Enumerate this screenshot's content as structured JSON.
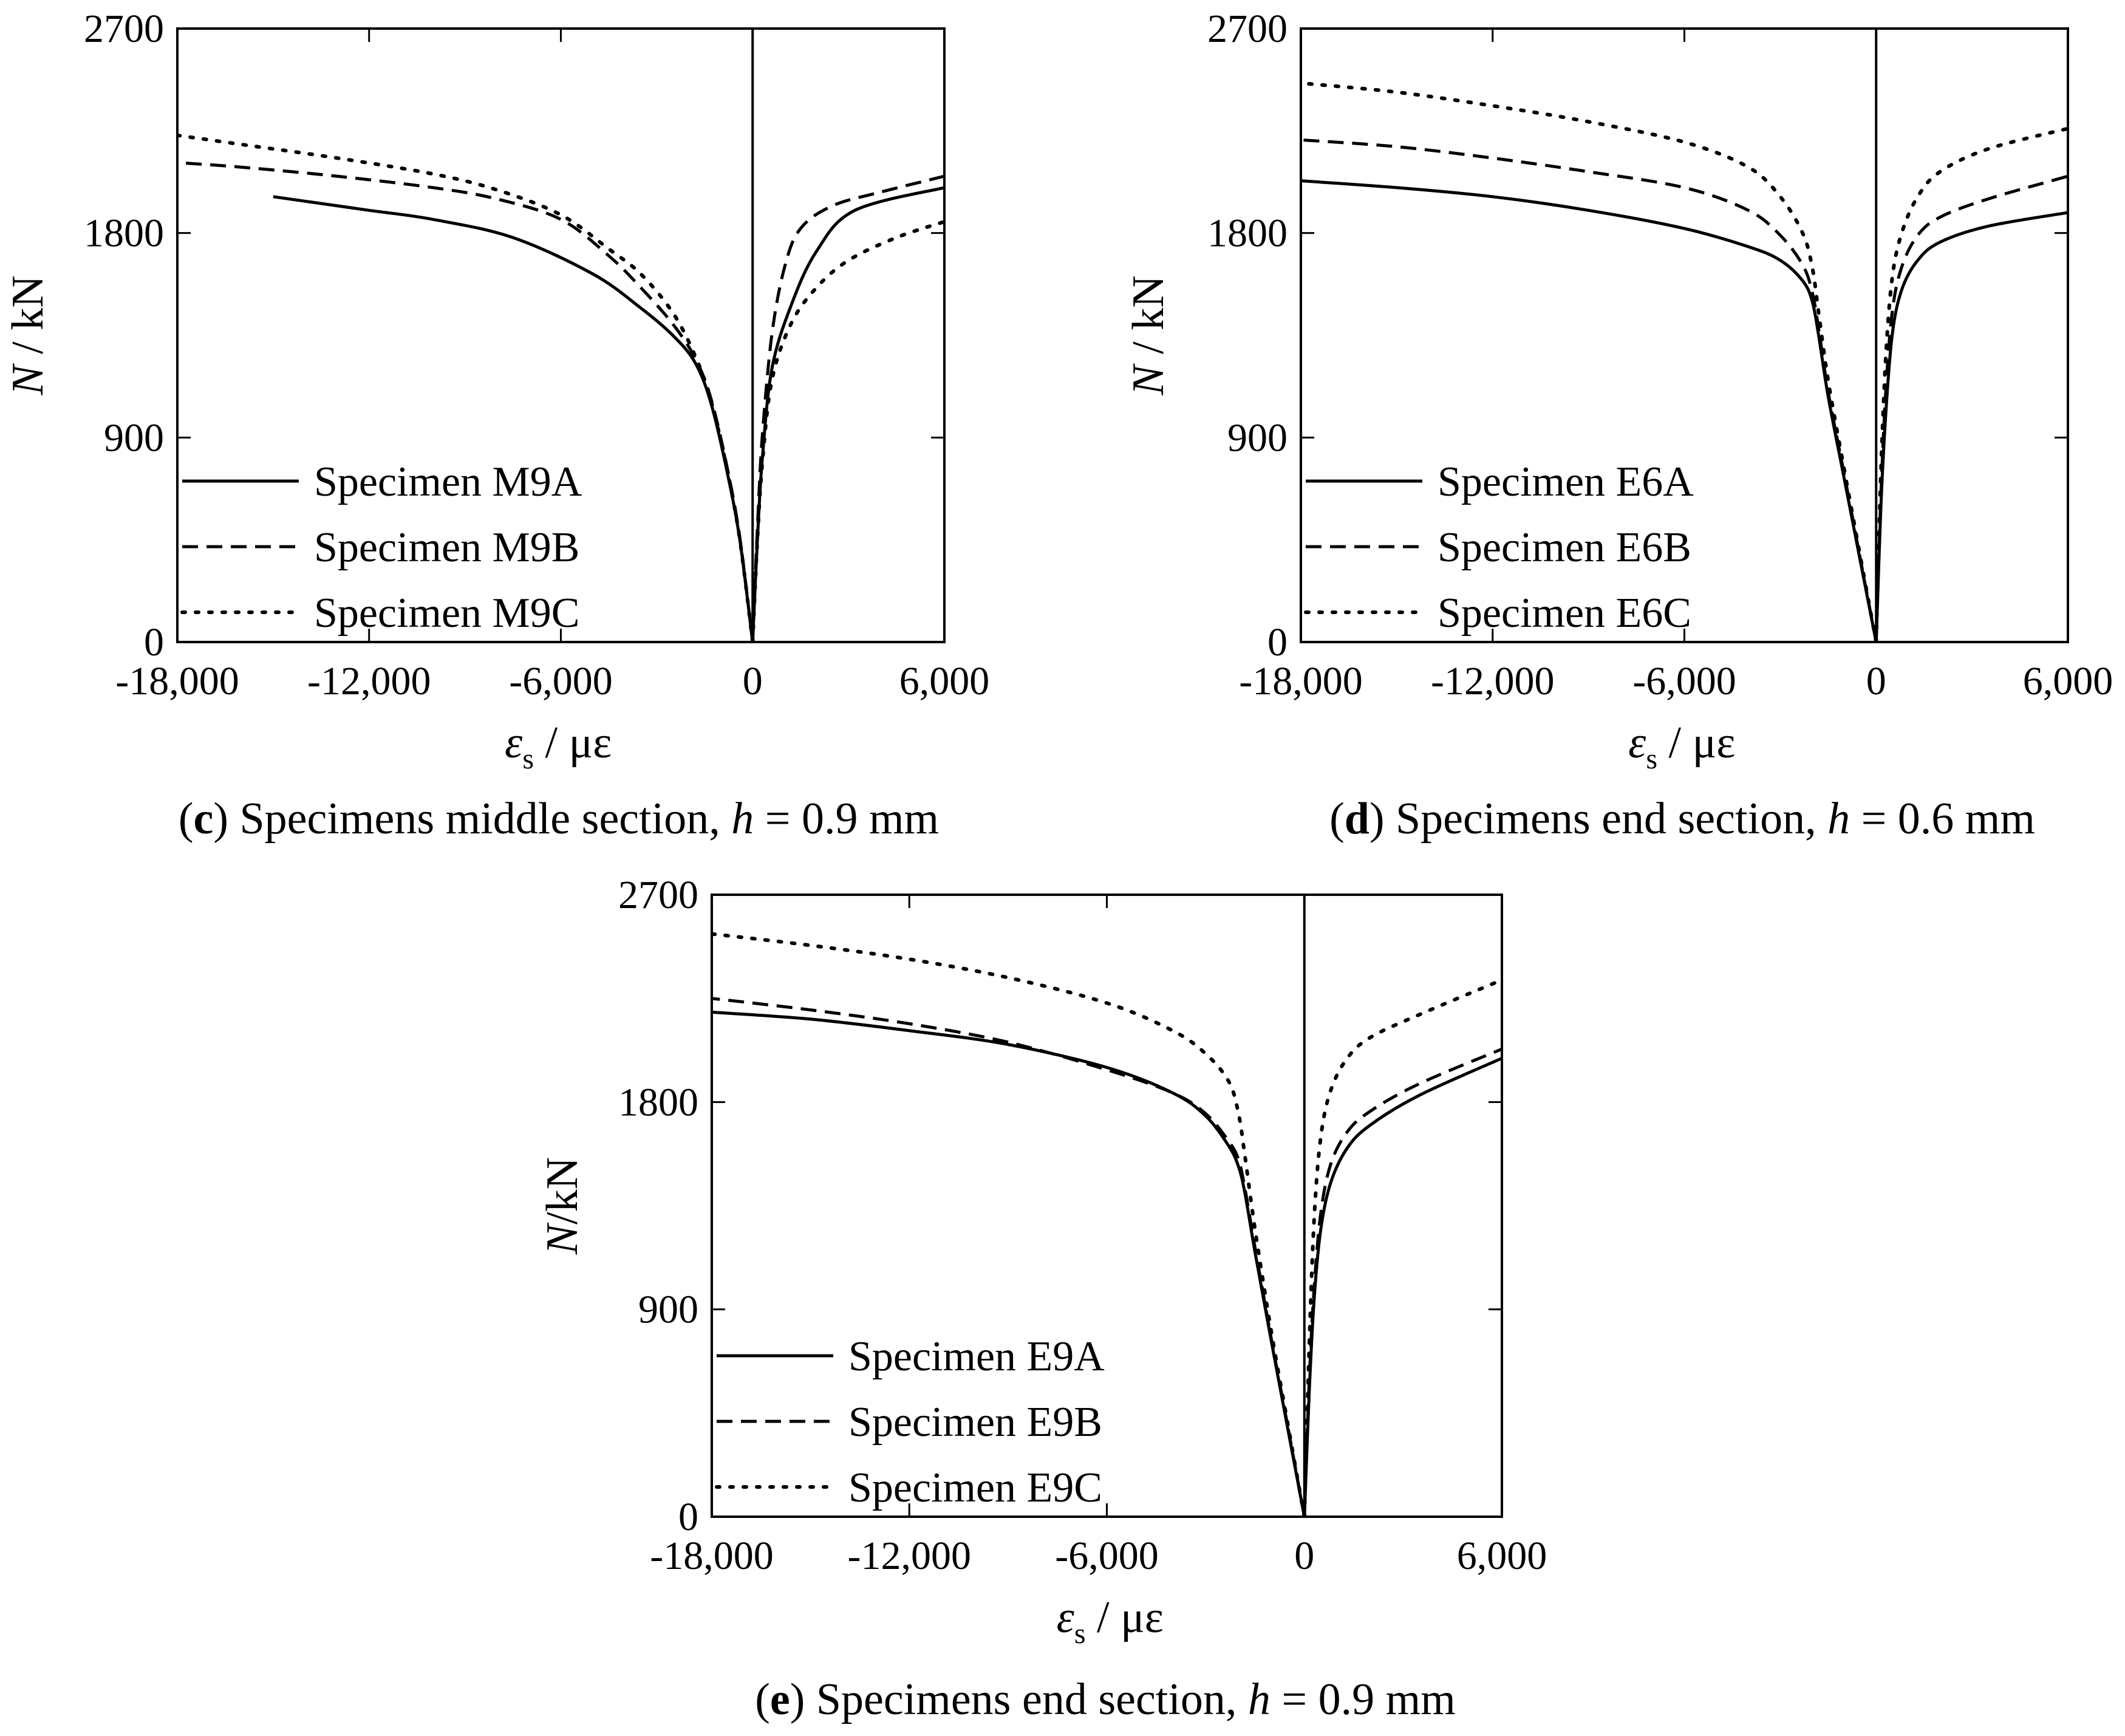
{
  "figure": {
    "panels": [
      {
        "id": "c",
        "caption": {
          "letter": "c",
          "text": "Specimens middle section, ",
          "h_symbol": "h",
          "h_value": " = 0.9 mm"
        },
        "axis_labels": {
          "y": "N / kN",
          "y_symbol": "N",
          "y_rest": " / kN",
          "x_symbol": "ε",
          "x_sub": "s",
          "x_rest": " / με"
        },
        "legend": [
          "Specimen M9A",
          "Specimen M9B",
          "Specimen M9C"
        ]
      },
      {
        "id": "d",
        "caption": {
          "letter": "d",
          "text": "Specimens end section, ",
          "h_symbol": "h",
          "h_value": " = 0.6 mm"
        },
        "axis_labels": {
          "y": "N / kN",
          "y_symbol": "N",
          "y_rest": " / kN",
          "x_symbol": "ε",
          "x_sub": "s",
          "x_rest": " / με"
        },
        "legend": [
          "Specimen E6A",
          "Specimen E6B",
          "Specimen E6C"
        ]
      },
      {
        "id": "e",
        "caption": {
          "letter": "e",
          "text": "Specimens end section, ",
          "h_symbol": "h",
          "h_value": " = 0.9 mm"
        },
        "axis_labels": {
          "y": "N/kN",
          "y_symbol": "N",
          "y_rest": "/kN",
          "x_symbol": "ε",
          "x_sub": "s",
          "x_rest": " / με"
        },
        "legend": [
          "Specimen E9A",
          "Specimen E9B",
          "Specimen E9C"
        ]
      }
    ]
  },
  "chart_data": [
    {
      "type": "line",
      "panel": "c",
      "xlim": [
        -18000,
        6000
      ],
      "ylim": [
        0,
        2700
      ],
      "x_ticks": [
        "-18,000",
        "-12,000",
        "-6,000",
        "0",
        "6,000"
      ],
      "y_ticks": [
        "0",
        "900",
        "1800",
        "2700"
      ],
      "grid": false,
      "legend_position": "bottom-left",
      "series": [
        {
          "name": "Specimen M9A",
          "style": "solid",
          "color": "#000000",
          "left": [
            [
              0,
              0
            ],
            [
              -400,
              450
            ],
            [
              -800,
              750
            ],
            [
              -1300,
              1050
            ],
            [
              -1800,
              1230
            ],
            [
              -2500,
              1350
            ],
            [
              -3500,
              1470
            ],
            [
              -5000,
              1620
            ],
            [
              -7500,
              1780
            ],
            [
              -10000,
              1860
            ],
            [
              -12000,
              1900
            ],
            [
              -14000,
              1940
            ],
            [
              -15000,
              1960
            ]
          ],
          "right": [
            [
              0,
              0
            ],
            [
              150,
              450
            ],
            [
              300,
              800
            ],
            [
              600,
              1200
            ],
            [
              1200,
              1480
            ],
            [
              2000,
              1720
            ],
            [
              3200,
              1900
            ],
            [
              6000,
              2000
            ]
          ]
        },
        {
          "name": "Specimen M9B",
          "style": "dashed",
          "color": "#000000",
          "left": [
            [
              0,
              0
            ],
            [
              -400,
              460
            ],
            [
              -800,
              770
            ],
            [
              -1300,
              1070
            ],
            [
              -1800,
              1250
            ],
            [
              -2500,
              1400
            ],
            [
              -3500,
              1560
            ],
            [
              -4500,
              1700
            ],
            [
              -6000,
              1860
            ],
            [
              -8000,
              1950
            ],
            [
              -10000,
              2000
            ],
            [
              -13000,
              2050
            ],
            [
              -16000,
              2090
            ],
            [
              -18000,
              2110
            ]
          ],
          "right": [
            [
              0,
              0
            ],
            [
              150,
              500
            ],
            [
              300,
              900
            ],
            [
              600,
              1350
            ],
            [
              1000,
              1650
            ],
            [
              1500,
              1820
            ],
            [
              2500,
              1920
            ],
            [
              4000,
              1980
            ],
            [
              6000,
              2050
            ]
          ]
        },
        {
          "name": "Specimen M9C",
          "style": "dotted",
          "color": "#000000",
          "left": [
            [
              0,
              0
            ],
            [
              -400,
              450
            ],
            [
              -800,
              760
            ],
            [
              -1300,
              1060
            ],
            [
              -1800,
              1260
            ],
            [
              -2500,
              1450
            ],
            [
              -3500,
              1620
            ],
            [
              -4500,
              1730
            ],
            [
              -6000,
              1880
            ],
            [
              -8000,
              1990
            ],
            [
              -10000,
              2060
            ],
            [
              -13000,
              2130
            ],
            [
              -16000,
              2190
            ],
            [
              -18000,
              2230
            ]
          ],
          "right": [
            [
              0,
              0
            ],
            [
              150,
              450
            ],
            [
              300,
              780
            ],
            [
              600,
              1150
            ],
            [
              1200,
              1400
            ],
            [
              2000,
              1560
            ],
            [
              3000,
              1680
            ],
            [
              4500,
              1780
            ],
            [
              6000,
              1850
            ]
          ]
        }
      ]
    },
    {
      "type": "line",
      "panel": "d",
      "xlim": [
        -18000,
        6000
      ],
      "ylim": [
        0,
        2700
      ],
      "x_ticks": [
        "-18,000",
        "-12,000",
        "-6,000",
        "0",
        "6,000"
      ],
      "y_ticks": [
        "0",
        "900",
        "1800",
        "2700"
      ],
      "grid": false,
      "legend_position": "bottom-left",
      "series": [
        {
          "name": "Specimen E6A",
          "style": "solid",
          "color": "#000000",
          "left": [
            [
              0,
              0
            ],
            [
              -500,
              360
            ],
            [
              -1000,
              720
            ],
            [
              -1500,
              1080
            ],
            [
              -1800,
              1350
            ],
            [
              -2000,
              1500
            ],
            [
              -2300,
              1590
            ],
            [
              -3000,
              1680
            ],
            [
              -4000,
              1740
            ],
            [
              -6000,
              1820
            ],
            [
              -9000,
              1900
            ],
            [
              -12000,
              1960
            ],
            [
              -15000,
              2000
            ],
            [
              -18000,
              2030
            ]
          ],
          "right": [
            [
              0,
              0
            ],
            [
              150,
              600
            ],
            [
              300,
              1000
            ],
            [
              500,
              1350
            ],
            [
              800,
              1550
            ],
            [
              1300,
              1680
            ],
            [
              2000,
              1760
            ],
            [
              3500,
              1830
            ],
            [
              6000,
              1890
            ]
          ]
        },
        {
          "name": "Specimen E6B",
          "style": "dashed",
          "color": "#000000",
          "left": [
            [
              0,
              0
            ],
            [
              -500,
              370
            ],
            [
              -1000,
              740
            ],
            [
              -1500,
              1100
            ],
            [
              -1800,
              1380
            ],
            [
              -2000,
              1540
            ],
            [
              -2300,
              1660
            ],
            [
              -3000,
              1790
            ],
            [
              -4000,
              1900
            ],
            [
              -6000,
              2000
            ],
            [
              -9000,
              2070
            ],
            [
              -12000,
              2130
            ],
            [
              -15000,
              2180
            ],
            [
              -18000,
              2210
            ]
          ],
          "right": [
            [
              0,
              0
            ],
            [
              150,
              650
            ],
            [
              300,
              1100
            ],
            [
              500,
              1450
            ],
            [
              800,
              1650
            ],
            [
              1300,
              1790
            ],
            [
              2000,
              1870
            ],
            [
              3500,
              1950
            ],
            [
              6000,
              2050
            ]
          ]
        },
        {
          "name": "Specimen E6C",
          "style": "dotted",
          "color": "#000000",
          "left": [
            [
              0,
              0
            ],
            [
              -500,
              380
            ],
            [
              -1000,
              760
            ],
            [
              -1500,
              1150
            ],
            [
              -1800,
              1450
            ],
            [
              -2000,
              1650
            ],
            [
              -2300,
              1800
            ],
            [
              -3000,
              1960
            ],
            [
              -4000,
              2090
            ],
            [
              -6000,
              2200
            ],
            [
              -9000,
              2290
            ],
            [
              -12000,
              2360
            ],
            [
              -15000,
              2420
            ],
            [
              -18000,
              2460
            ]
          ],
          "right": [
            [
              0,
              0
            ],
            [
              150,
              750
            ],
            [
              300,
              1250
            ],
            [
              500,
              1600
            ],
            [
              800,
              1800
            ],
            [
              1300,
              1960
            ],
            [
              2000,
              2070
            ],
            [
              3500,
              2170
            ],
            [
              6000,
              2260
            ]
          ]
        }
      ]
    },
    {
      "type": "line",
      "panel": "e",
      "xlim": [
        -18000,
        6000
      ],
      "ylim": [
        0,
        2700
      ],
      "x_ticks": [
        "-18,000",
        "-12,000",
        "-6,000",
        "0",
        "6,000"
      ],
      "y_ticks": [
        "0",
        "900",
        "1800",
        "2700"
      ],
      "grid": false,
      "legend_position": "bottom-left",
      "series": [
        {
          "name": "Specimen E9A",
          "style": "solid",
          "color": "#000000",
          "left": [
            [
              0,
              0
            ],
            [
              -500,
              380
            ],
            [
              -1000,
              760
            ],
            [
              -1500,
              1150
            ],
            [
              -1800,
              1400
            ],
            [
              -2000,
              1520
            ],
            [
              -2300,
              1610
            ],
            [
              -3000,
              1740
            ],
            [
              -4000,
              1840
            ],
            [
              -6000,
              1950
            ],
            [
              -9000,
              2050
            ],
            [
              -12000,
              2110
            ],
            [
              -15000,
              2160
            ],
            [
              -18000,
              2190
            ]
          ],
          "right": [
            [
              0,
              0
            ],
            [
              150,
              550
            ],
            [
              300,
              950
            ],
            [
              500,
              1250
            ],
            [
              800,
              1450
            ],
            [
              1300,
              1600
            ],
            [
              2000,
              1700
            ],
            [
              3500,
              1830
            ],
            [
              6000,
              1990
            ]
          ]
        },
        {
          "name": "Specimen E9B",
          "style": "dashed",
          "color": "#000000",
          "left": [
            [
              0,
              0
            ],
            [
              -500,
              390
            ],
            [
              -1000,
              770
            ],
            [
              -1500,
              1170
            ],
            [
              -1800,
              1420
            ],
            [
              -2000,
              1550
            ],
            [
              -2300,
              1630
            ],
            [
              -3000,
              1750
            ],
            [
              -4000,
              1840
            ],
            [
              -6000,
              1940
            ],
            [
              -9000,
              2060
            ],
            [
              -12000,
              2140
            ],
            [
              -15000,
              2200
            ],
            [
              -18000,
              2250
            ]
          ],
          "right": [
            [
              0,
              0
            ],
            [
              150,
              600
            ],
            [
              300,
              1000
            ],
            [
              500,
              1320
            ],
            [
              800,
              1530
            ],
            [
              1300,
              1670
            ],
            [
              2000,
              1760
            ],
            [
              3500,
              1880
            ],
            [
              6000,
              2030
            ]
          ]
        },
        {
          "name": "Specimen E9C",
          "style": "dotted",
          "color": "#000000",
          "left": [
            [
              0,
              0
            ],
            [
              -500,
              400
            ],
            [
              -1000,
              800
            ],
            [
              -1500,
              1250
            ],
            [
              -1800,
              1560
            ],
            [
              -2000,
              1750
            ],
            [
              -2300,
              1890
            ],
            [
              -3000,
              2010
            ],
            [
              -4000,
              2110
            ],
            [
              -6000,
              2230
            ],
            [
              -9000,
              2340
            ],
            [
              -12000,
              2420
            ],
            [
              -15000,
              2480
            ],
            [
              -18000,
              2530
            ]
          ],
          "right": [
            [
              0,
              0
            ],
            [
              150,
              750
            ],
            [
              300,
              1300
            ],
            [
              500,
              1650
            ],
            [
              800,
              1850
            ],
            [
              1300,
              1990
            ],
            [
              2000,
              2080
            ],
            [
              3500,
              2180
            ],
            [
              6000,
              2330
            ]
          ]
        }
      ]
    }
  ]
}
